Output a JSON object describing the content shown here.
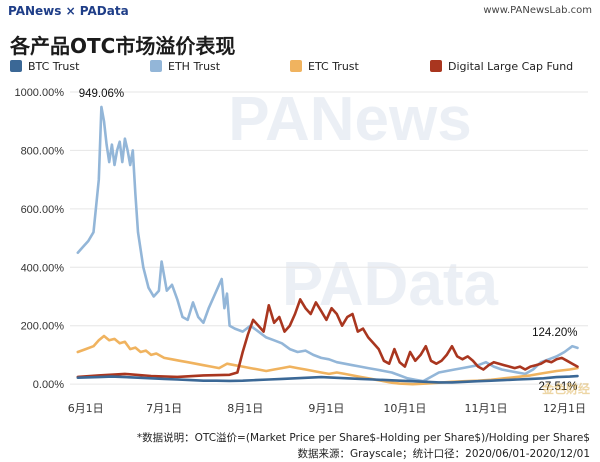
{
  "header": {
    "brand": "PANews × PAData",
    "site": "www.PANewsLab.com"
  },
  "title": "各产品OTC市场溢价表现",
  "watermarks": [
    "PANews",
    "PAData"
  ],
  "corner_watermark": "金色财经",
  "footnote": {
    "line1": "*数据说明：OTC溢价=(Market Price per Share$-Holding per Share$)/Holding per Share$",
    "line2": "数据来源：Grayscale；统计口径：2020/06/01-2020/12/01"
  },
  "colors": {
    "btc": "#3b6896",
    "eth": "#93b6d8",
    "etc": "#f0b35f",
    "dlcf": "#a9361f",
    "grid": "#e6e6e6",
    "watermark": "#c7d4e4"
  },
  "chart_data": {
    "type": "line",
    "x_ticks": [
      "6月1日",
      "7月1日",
      "8月1日",
      "9月1日",
      "10月1日",
      "11月1日",
      "12月1日"
    ],
    "x_tick_days": [
      0,
      30,
      61,
      92,
      122,
      153,
      183
    ],
    "ylim": [
      -20,
      1000
    ],
    "y_ticks": [
      0,
      200,
      400,
      600,
      800,
      1000
    ],
    "y_tick_labels": [
      "0.00%",
      "200.00%",
      "400.00%",
      "600.00%",
      "800.00%",
      "1000.00%"
    ],
    "legend_position": "top",
    "grid": "horizontal",
    "series": [
      {
        "name": "BTC Trust",
        "color_key": "btc",
        "points": [
          [
            -3,
            22
          ],
          [
            5,
            24
          ],
          [
            10,
            26
          ],
          [
            15,
            24
          ],
          [
            20,
            22
          ],
          [
            25,
            20
          ],
          [
            30,
            18
          ],
          [
            35,
            16
          ],
          [
            40,
            14
          ],
          [
            45,
            12
          ],
          [
            50,
            12
          ],
          [
            55,
            11
          ],
          [
            60,
            12
          ],
          [
            65,
            14
          ],
          [
            70,
            16
          ],
          [
            75,
            18
          ],
          [
            80,
            20
          ],
          [
            85,
            22
          ],
          [
            90,
            24
          ],
          [
            95,
            22
          ],
          [
            100,
            20
          ],
          [
            105,
            18
          ],
          [
            110,
            16
          ],
          [
            115,
            14
          ],
          [
            120,
            12
          ],
          [
            125,
            10
          ],
          [
            130,
            8
          ],
          [
            135,
            6
          ],
          [
            140,
            6
          ],
          [
            145,
            8
          ],
          [
            150,
            10
          ],
          [
            155,
            12
          ],
          [
            160,
            14
          ],
          [
            165,
            16
          ],
          [
            170,
            18
          ],
          [
            175,
            20
          ],
          [
            180,
            24
          ],
          [
            185,
            26
          ],
          [
            188,
            27.51
          ]
        ]
      },
      {
        "name": "ETH Trust",
        "color_key": "eth",
        "points": [
          [
            -3,
            450
          ],
          [
            -1,
            470
          ],
          [
            1,
            490
          ],
          [
            3,
            520
          ],
          [
            5,
            700
          ],
          [
            6,
            949.06
          ],
          [
            7,
            900
          ],
          [
            8,
            820
          ],
          [
            9,
            760
          ],
          [
            10,
            820
          ],
          [
            11,
            750
          ],
          [
            12,
            800
          ],
          [
            13,
            830
          ],
          [
            14,
            760
          ],
          [
            15,
            840
          ],
          [
            16,
            800
          ],
          [
            17,
            750
          ],
          [
            18,
            800
          ],
          [
            19,
            650
          ],
          [
            20,
            520
          ],
          [
            22,
            400
          ],
          [
            24,
            330
          ],
          [
            26,
            300
          ],
          [
            28,
            320
          ],
          [
            29,
            420
          ],
          [
            31,
            320
          ],
          [
            33,
            340
          ],
          [
            35,
            290
          ],
          [
            37,
            230
          ],
          [
            39,
            220
          ],
          [
            41,
            280
          ],
          [
            43,
            230
          ],
          [
            45,
            210
          ],
          [
            47,
            260
          ],
          [
            49,
            300
          ],
          [
            51,
            340
          ],
          [
            52,
            360
          ],
          [
            53,
            260
          ],
          [
            54,
            310
          ],
          [
            55,
            200
          ],
          [
            57,
            190
          ],
          [
            60,
            180
          ],
          [
            63,
            200
          ],
          [
            66,
            180
          ],
          [
            69,
            160
          ],
          [
            72,
            150
          ],
          [
            75,
            140
          ],
          [
            78,
            120
          ],
          [
            81,
            110
          ],
          [
            84,
            115
          ],
          [
            87,
            100
          ],
          [
            90,
            90
          ],
          [
            93,
            85
          ],
          [
            96,
            75
          ],
          [
            99,
            70
          ],
          [
            102,
            65
          ],
          [
            105,
            60
          ],
          [
            108,
            55
          ],
          [
            111,
            50
          ],
          [
            114,
            45
          ],
          [
            117,
            40
          ],
          [
            120,
            30
          ],
          [
            123,
            20
          ],
          [
            126,
            15
          ],
          [
            129,
            10
          ],
          [
            132,
            25
          ],
          [
            135,
            40
          ],
          [
            138,
            45
          ],
          [
            141,
            50
          ],
          [
            144,
            55
          ],
          [
            147,
            60
          ],
          [
            150,
            65
          ],
          [
            153,
            75
          ],
          [
            156,
            60
          ],
          [
            159,
            50
          ],
          [
            162,
            45
          ],
          [
            165,
            40
          ],
          [
            168,
            35
          ],
          [
            171,
            50
          ],
          [
            174,
            75
          ],
          [
            177,
            85
          ],
          [
            180,
            95
          ],
          [
            183,
            110
          ],
          [
            186,
            130
          ],
          [
            188,
            124.2
          ]
        ]
      },
      {
        "name": "ETC Trust",
        "color_key": "etc",
        "points": [
          [
            -3,
            110
          ],
          [
            0,
            120
          ],
          [
            3,
            130
          ],
          [
            5,
            150
          ],
          [
            7,
            165
          ],
          [
            9,
            150
          ],
          [
            11,
            155
          ],
          [
            13,
            140
          ],
          [
            15,
            145
          ],
          [
            17,
            120
          ],
          [
            19,
            125
          ],
          [
            21,
            110
          ],
          [
            23,
            115
          ],
          [
            25,
            100
          ],
          [
            27,
            105
          ],
          [
            30,
            90
          ],
          [
            33,
            85
          ],
          [
            36,
            80
          ],
          [
            39,
            75
          ],
          [
            42,
            70
          ],
          [
            45,
            65
          ],
          [
            48,
            60
          ],
          [
            51,
            55
          ],
          [
            54,
            70
          ],
          [
            57,
            65
          ],
          [
            60,
            60
          ],
          [
            63,
            55
          ],
          [
            66,
            50
          ],
          [
            69,
            45
          ],
          [
            72,
            50
          ],
          [
            75,
            55
          ],
          [
            78,
            60
          ],
          [
            81,
            55
          ],
          [
            84,
            50
          ],
          [
            87,
            45
          ],
          [
            90,
            40
          ],
          [
            93,
            35
          ],
          [
            96,
            40
          ],
          [
            99,
            35
          ],
          [
            102,
            30
          ],
          [
            105,
            25
          ],
          [
            108,
            20
          ],
          [
            111,
            15
          ],
          [
            114,
            10
          ],
          [
            117,
            5
          ],
          [
            120,
            2
          ],
          [
            125,
            0
          ],
          [
            130,
            2
          ],
          [
            135,
            5
          ],
          [
            140,
            8
          ],
          [
            145,
            10
          ],
          [
            150,
            12
          ],
          [
            155,
            15
          ],
          [
            160,
            20
          ],
          [
            165,
            25
          ],
          [
            170,
            30
          ],
          [
            175,
            38
          ],
          [
            180,
            45
          ],
          [
            185,
            50
          ],
          [
            188,
            55
          ]
        ]
      },
      {
        "name": "Digital Large Cap Fund",
        "color_key": "dlcf",
        "points": [
          [
            -3,
            25
          ],
          [
            5,
            30
          ],
          [
            15,
            35
          ],
          [
            25,
            28
          ],
          [
            35,
            25
          ],
          [
            45,
            30
          ],
          [
            55,
            32
          ],
          [
            58,
            40
          ],
          [
            60,
            110
          ],
          [
            62,
            170
          ],
          [
            64,
            220
          ],
          [
            66,
            200
          ],
          [
            68,
            180
          ],
          [
            70,
            270
          ],
          [
            72,
            210
          ],
          [
            74,
            230
          ],
          [
            76,
            180
          ],
          [
            78,
            200
          ],
          [
            80,
            240
          ],
          [
            82,
            290
          ],
          [
            84,
            260
          ],
          [
            86,
            240
          ],
          [
            88,
            280
          ],
          [
            90,
            250
          ],
          [
            92,
            220
          ],
          [
            94,
            260
          ],
          [
            96,
            240
          ],
          [
            98,
            200
          ],
          [
            100,
            230
          ],
          [
            102,
            240
          ],
          [
            104,
            180
          ],
          [
            106,
            190
          ],
          [
            108,
            160
          ],
          [
            110,
            140
          ],
          [
            112,
            120
          ],
          [
            114,
            80
          ],
          [
            116,
            70
          ],
          [
            118,
            120
          ],
          [
            120,
            75
          ],
          [
            122,
            60
          ],
          [
            124,
            110
          ],
          [
            126,
            80
          ],
          [
            128,
            100
          ],
          [
            130,
            130
          ],
          [
            132,
            80
          ],
          [
            134,
            70
          ],
          [
            136,
            80
          ],
          [
            138,
            100
          ],
          [
            140,
            130
          ],
          [
            142,
            95
          ],
          [
            144,
            85
          ],
          [
            146,
            95
          ],
          [
            148,
            80
          ],
          [
            150,
            60
          ],
          [
            152,
            50
          ],
          [
            154,
            65
          ],
          [
            156,
            75
          ],
          [
            158,
            70
          ],
          [
            160,
            65
          ],
          [
            162,
            60
          ],
          [
            164,
            55
          ],
          [
            166,
            60
          ],
          [
            168,
            50
          ],
          [
            170,
            60
          ],
          [
            172,
            65
          ],
          [
            174,
            70
          ],
          [
            176,
            80
          ],
          [
            178,
            75
          ],
          [
            180,
            85
          ],
          [
            182,
            90
          ],
          [
            184,
            80
          ],
          [
            186,
            70
          ],
          [
            188,
            60
          ]
        ]
      }
    ],
    "annotations": [
      {
        "text": "949.06%",
        "x": 6,
        "y": 949.06,
        "anchor": "middle",
        "dy": -10
      },
      {
        "text": "124.20%",
        "x": 188,
        "y": 124.2,
        "anchor": "end",
        "dy": -12
      },
      {
        "text": "27.51%",
        "x": 188,
        "y": 27.51,
        "anchor": "end",
        "dy": 14
      }
    ]
  }
}
